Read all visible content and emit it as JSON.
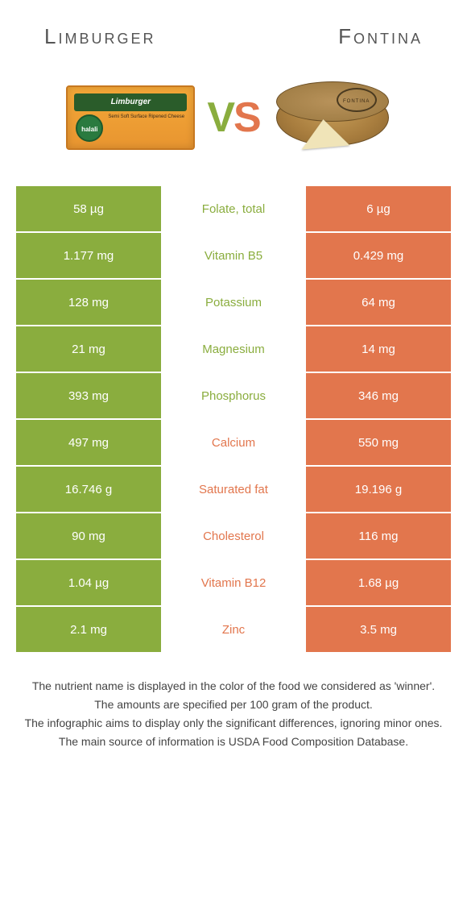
{
  "colors": {
    "left": "#8aad3e",
    "right": "#e2764d",
    "mid_green": "#8aad3e",
    "mid_orange": "#e2764d"
  },
  "header": {
    "left_title": "Limburger",
    "right_title": "Fontina",
    "vs_v": "V",
    "vs_s": "S",
    "limburger_brand": "Limburger",
    "limburger_badge": "halali",
    "limburger_desc": "Semi Soft Surface Ripened Cheese",
    "fontina_stamp": "FONTINA"
  },
  "rows": [
    {
      "left": "58 µg",
      "label": "Folate, total",
      "right": "6 µg",
      "winner": "left"
    },
    {
      "left": "1.177 mg",
      "label": "Vitamin B5",
      "right": "0.429 mg",
      "winner": "left"
    },
    {
      "left": "128 mg",
      "label": "Potassium",
      "right": "64 mg",
      "winner": "left"
    },
    {
      "left": "21 mg",
      "label": "Magnesium",
      "right": "14 mg",
      "winner": "left"
    },
    {
      "left": "393 mg",
      "label": "Phosphorus",
      "right": "346 mg",
      "winner": "left"
    },
    {
      "left": "497 mg",
      "label": "Calcium",
      "right": "550 mg",
      "winner": "right"
    },
    {
      "left": "16.746 g",
      "label": "Saturated fat",
      "right": "19.196 g",
      "winner": "right"
    },
    {
      "left": "90 mg",
      "label": "Cholesterol",
      "right": "116 mg",
      "winner": "right"
    },
    {
      "left": "1.04 µg",
      "label": "Vitamin B12",
      "right": "1.68 µg",
      "winner": "right"
    },
    {
      "left": "2.1 mg",
      "label": "Zinc",
      "right": "3.5 mg",
      "winner": "right"
    }
  ],
  "footer": {
    "line1": "The nutrient name is displayed in the color of the food we considered as 'winner'.",
    "line2": "The amounts are specified per 100 gram of the product.",
    "line3": "The infographic aims to display only the significant differences, ignoring minor ones.",
    "line4": "The main source of information is USDA Food Composition Database."
  }
}
